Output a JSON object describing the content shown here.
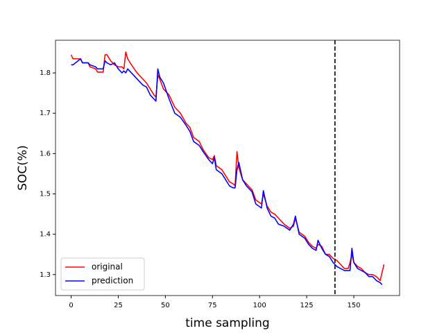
{
  "chart_data": {
    "type": "line",
    "x_label": "time sampling",
    "y_label": "SOC(%)",
    "x": [
      0,
      1,
      5,
      6,
      9,
      10,
      13,
      14,
      17,
      18,
      19,
      21,
      23,
      25,
      27,
      28,
      29,
      30,
      32,
      35,
      38,
      40,
      42,
      44,
      45,
      46,
      47,
      49,
      52,
      55,
      58,
      61,
      63,
      65,
      68,
      70,
      73,
      75,
      76,
      77,
      80,
      82,
      84,
      86,
      87,
      88,
      89,
      91,
      93,
      96,
      98,
      101,
      102,
      104,
      106,
      108,
      110,
      113,
      116,
      118,
      119,
      121,
      124,
      126,
      128,
      130,
      131,
      133,
      135,
      137,
      139,
      141,
      143,
      145,
      147,
      148,
      149,
      150,
      152,
      154,
      156,
      158,
      160,
      162,
      164,
      165,
      166
    ],
    "series": [
      {
        "name": "original",
        "color": "#ff0000",
        "values": [
          1.845,
          1.835,
          1.835,
          1.825,
          1.825,
          1.815,
          1.81,
          1.802,
          1.802,
          1.845,
          1.845,
          1.83,
          1.82,
          1.815,
          1.815,
          1.81,
          1.852,
          1.835,
          1.82,
          1.8,
          1.785,
          1.775,
          1.76,
          1.745,
          1.74,
          1.795,
          1.785,
          1.76,
          1.745,
          1.715,
          1.7,
          1.675,
          1.665,
          1.64,
          1.63,
          1.61,
          1.59,
          1.585,
          1.595,
          1.57,
          1.56,
          1.545,
          1.53,
          1.525,
          1.52,
          1.605,
          1.565,
          1.535,
          1.525,
          1.51,
          1.485,
          1.475,
          1.5,
          1.47,
          1.455,
          1.45,
          1.44,
          1.425,
          1.415,
          1.42,
          1.44,
          1.405,
          1.395,
          1.38,
          1.37,
          1.365,
          1.375,
          1.37,
          1.35,
          1.35,
          1.34,
          1.335,
          1.325,
          1.315,
          1.315,
          1.33,
          1.35,
          1.33,
          1.32,
          1.315,
          1.305,
          1.3,
          1.3,
          1.295,
          1.285,
          1.305,
          1.325
        ]
      },
      {
        "name": "prediction",
        "color": "#0000ff",
        "values": [
          1.82,
          1.82,
          1.835,
          1.825,
          1.825,
          1.82,
          1.815,
          1.81,
          1.81,
          1.83,
          1.825,
          1.82,
          1.825,
          1.81,
          1.8,
          1.805,
          1.8,
          1.81,
          1.8,
          1.785,
          1.77,
          1.765,
          1.745,
          1.735,
          1.73,
          1.81,
          1.79,
          1.775,
          1.735,
          1.7,
          1.69,
          1.67,
          1.655,
          1.63,
          1.62,
          1.605,
          1.585,
          1.575,
          1.59,
          1.56,
          1.55,
          1.535,
          1.52,
          1.515,
          1.515,
          1.56,
          1.578,
          1.535,
          1.52,
          1.505,
          1.475,
          1.465,
          1.508,
          1.465,
          1.445,
          1.44,
          1.425,
          1.42,
          1.41,
          1.425,
          1.445,
          1.4,
          1.39,
          1.375,
          1.365,
          1.36,
          1.385,
          1.365,
          1.35,
          1.345,
          1.33,
          1.32,
          1.315,
          1.31,
          1.31,
          1.31,
          1.365,
          1.33,
          1.315,
          1.31,
          1.305,
          1.295,
          1.295,
          1.285,
          1.28,
          1.275,
          null
        ]
      }
    ],
    "xlim": [
      -8.3,
      174.3
    ],
    "ylim": [
      1.248,
      1.881
    ],
    "xticks": [
      0,
      25,
      50,
      75,
      100,
      125,
      150
    ],
    "yticks": [
      1.3,
      1.4,
      1.5,
      1.6,
      1.7,
      1.8
    ],
    "vline": 140,
    "legend": "lower left"
  }
}
